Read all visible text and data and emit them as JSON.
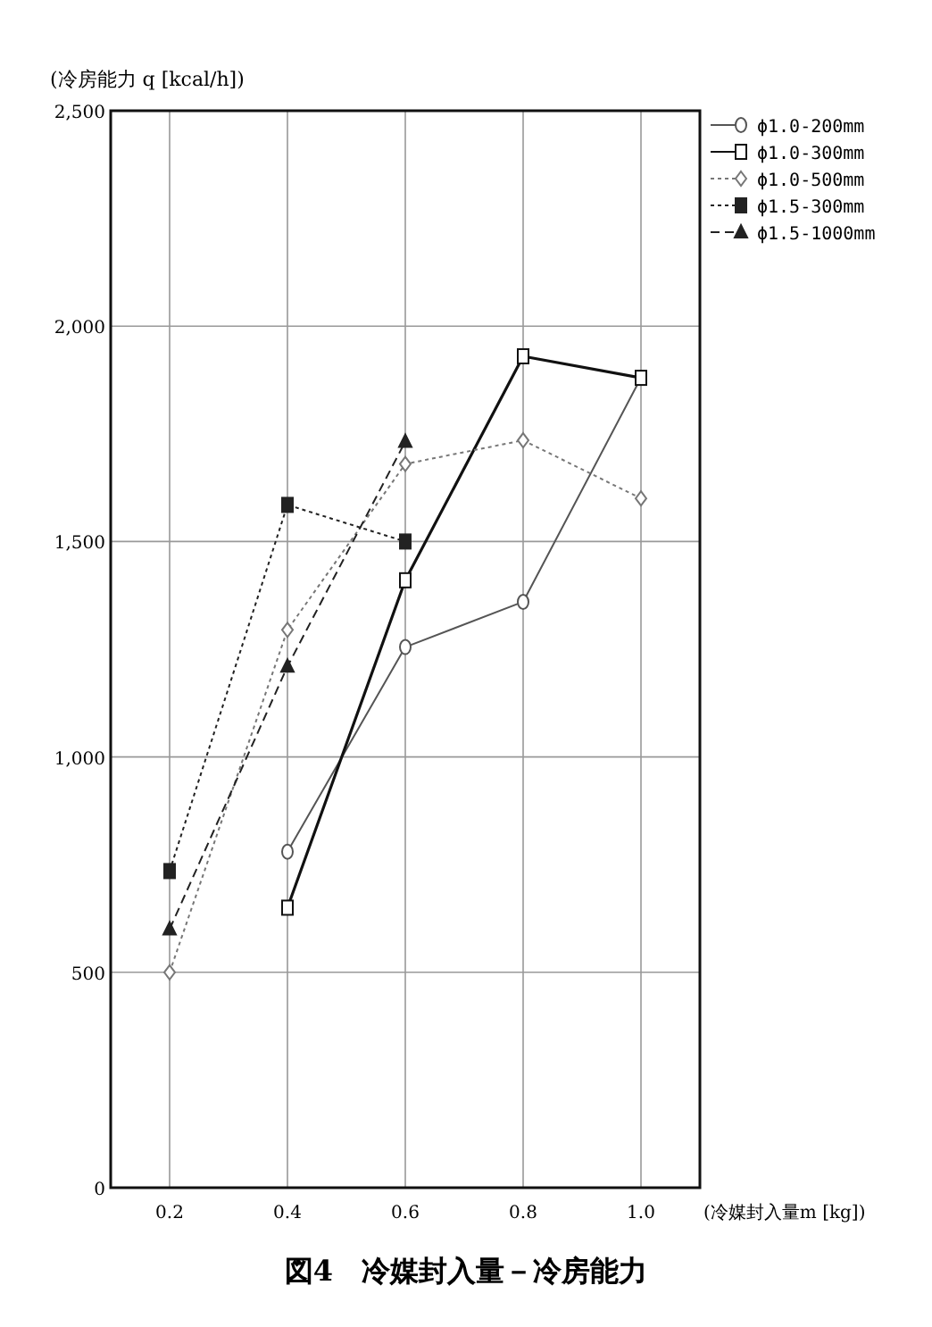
{
  "chart_data": {
    "type": "line",
    "title": "図4　冷媒封入量－冷房能力",
    "ylabel": "(冷房能力 q [kcal/h])",
    "xlabel": "(冷媒封入量m [kg])",
    "x": [
      0.2,
      0.4,
      0.6,
      0.8,
      1.0
    ],
    "xlim": [
      0.1,
      1.1
    ],
    "xticks": [
      {
        "value": 0.2,
        "label": "0.2"
      },
      {
        "value": 0.4,
        "label": "0.4"
      },
      {
        "value": 0.6,
        "label": "0.6"
      },
      {
        "value": 0.8,
        "label": "0.8"
      },
      {
        "value": 1.0,
        "label": "1.0"
      }
    ],
    "ylim": [
      0,
      2500
    ],
    "yticks": [
      0,
      500,
      {
        "value": 1000,
        "label": "1,000"
      },
      {
        "value": 1500,
        "label": "1,500"
      },
      {
        "value": 2000,
        "label": "2,000"
      },
      {
        "value": 2500,
        "label": "2,500"
      }
    ],
    "grid": true,
    "legend": "right",
    "series": [
      {
        "name": "ϕ1.0-200mm",
        "color": "#555555",
        "marker": "circle",
        "line_style": "solid",
        "values": [
          null,
          780,
          1255,
          1360,
          1880
        ]
      },
      {
        "name": "ϕ1.0-300mm",
        "color": "#111111",
        "marker": "square",
        "line_style": "solid",
        "values": [
          null,
          650,
          1410,
          1930,
          1880
        ]
      },
      {
        "name": "ϕ1.0-500mm",
        "color": "#777777",
        "marker": "diamond",
        "line_style": "dotted",
        "values": [
          500,
          1295,
          1680,
          1735,
          1600
        ]
      },
      {
        "name": "ϕ1.5-300mm",
        "color": "#222222",
        "marker": "square",
        "line_style": "dotted",
        "values": [
          735,
          1585,
          1500,
          null,
          null
        ]
      },
      {
        "name": "ϕ1.5-1000mm",
        "color": "#222222",
        "marker": "triangle",
        "line_style": "dashed",
        "values": [
          600,
          1210,
          1732,
          null,
          null
        ]
      }
    ]
  }
}
